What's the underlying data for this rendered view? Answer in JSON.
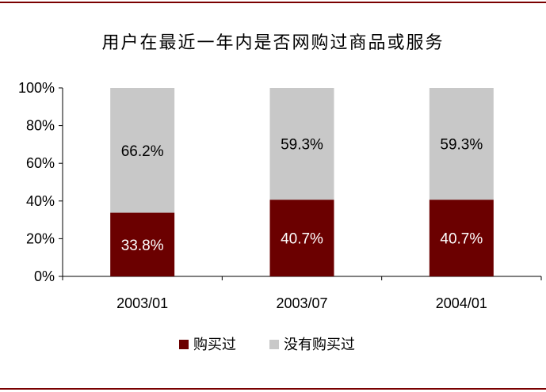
{
  "chart_data": {
    "type": "bar",
    "stacked": true,
    "title": "用户在最近一年内是否网购过商品或服务",
    "categories": [
      "2003/01",
      "2003/07",
      "2004/01"
    ],
    "series": [
      {
        "name": "购买过",
        "values": [
          33.8,
          40.7,
          40.7
        ],
        "labels": [
          "33.8%",
          "40.7%",
          "40.7%"
        ],
        "color": "#6b0000"
      },
      {
        "name": "没有购买过",
        "values": [
          66.2,
          59.3,
          59.3
        ],
        "labels": [
          "66.2%",
          "59.3%",
          "59.3%"
        ],
        "color": "#c8c8c8"
      }
    ],
    "ylim": [
      0,
      100
    ],
    "yticks": [
      "0%",
      "20%",
      "40%",
      "60%",
      "80%",
      "100%"
    ],
    "grid": false,
    "legend_position": "bottom"
  },
  "colors": {
    "frame": "#7a0000",
    "purchased": "#6b0000",
    "not_purchased": "#c8c8c8"
  }
}
